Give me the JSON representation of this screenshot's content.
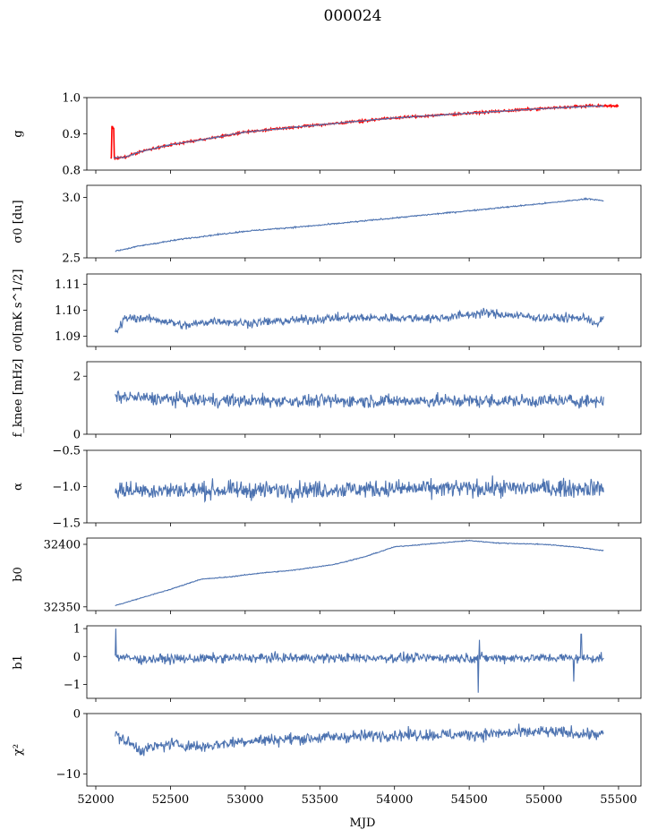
{
  "title": "000024",
  "chart_data": {
    "type": "line",
    "title": "000024",
    "xlabel": "MJD",
    "xlim": [
      51940,
      55650
    ],
    "xticks": [
      52000,
      52500,
      53000,
      53500,
      54000,
      54500,
      55000,
      55500
    ],
    "grid": false,
    "panels": [
      {
        "ylabel": "g",
        "ylim": [
          0.8,
          1.0
        ],
        "yticks": [
          "0.8",
          "0.9",
          "1.0"
        ],
        "series": [
          {
            "color": "#ff0000",
            "noise": 0.002,
            "spikes": [
              [
                52110,
                0.92
              ],
              [
                52118,
                0.915
              ]
            ],
            "points": [
              [
                52100,
                0.835
              ],
              [
                52120,
                0.832
              ],
              [
                52200,
                0.836
              ],
              [
                52300,
                0.851
              ],
              [
                52500,
                0.87
              ],
              [
                52800,
                0.89
              ],
              [
                53000,
                0.905
              ],
              [
                53500,
                0.925
              ],
              [
                54000,
                0.944
              ],
              [
                54500,
                0.957
              ],
              [
                55000,
                0.97
              ],
              [
                55300,
                0.977
              ],
              [
                55500,
                0.977
              ]
            ]
          },
          {
            "color": "#4c72b0",
            "noise": 0.001,
            "points": [
              [
                52120,
                0.834
              ],
              [
                52200,
                0.836
              ],
              [
                52300,
                0.851
              ],
              [
                52500,
                0.87
              ],
              [
                52800,
                0.89
              ],
              [
                53000,
                0.905
              ],
              [
                53500,
                0.925
              ],
              [
                54000,
                0.944
              ],
              [
                54500,
                0.957
              ],
              [
                55000,
                0.97
              ],
              [
                55300,
                0.976
              ],
              [
                55400,
                0.977
              ]
            ]
          }
        ]
      },
      {
        "ylabel": "σ0 [du]",
        "ylim": [
          2.5,
          3.1
        ],
        "yticks": [
          "2.5",
          "3.0"
        ],
        "series": [
          {
            "color": "#4c72b0",
            "noise": 0.004,
            "points": [
              [
                52130,
                2.555
              ],
              [
                52300,
                2.6
              ],
              [
                52600,
                2.66
              ],
              [
                53000,
                2.72
              ],
              [
                53500,
                2.77
              ],
              [
                54000,
                2.83
              ],
              [
                54500,
                2.89
              ],
              [
                55000,
                2.95
              ],
              [
                55300,
                2.99
              ],
              [
                55400,
                2.97
              ]
            ]
          }
        ]
      },
      {
        "ylabel": "σ0[mK s^1/2]",
        "ylim": [
          1.086,
          1.114
        ],
        "yticks": [
          "1.09",
          "1.10",
          "1.11"
        ],
        "series": [
          {
            "color": "#4c72b0",
            "noise": 0.0012,
            "points": [
              [
                52130,
                1.091
              ],
              [
                52200,
                1.097
              ],
              [
                52300,
                1.097
              ],
              [
                52450,
                1.096
              ],
              [
                52600,
                1.094
              ],
              [
                52800,
                1.096
              ],
              [
                53000,
                1.095
              ],
              [
                53300,
                1.096
              ],
              [
                53600,
                1.097
              ],
              [
                54000,
                1.097
              ],
              [
                54300,
                1.097
              ],
              [
                54600,
                1.099
              ],
              [
                55000,
                1.097
              ],
              [
                55300,
                1.097
              ],
              [
                55350,
                1.094
              ],
              [
                55400,
                1.097
              ]
            ]
          }
        ]
      },
      {
        "ylabel": "f_knee [mHz]",
        "ylim": [
          0,
          2.5
        ],
        "yticks": [
          "0",
          "2"
        ],
        "series": [
          {
            "color": "#4c72b0",
            "noise": 0.16,
            "points": [
              [
                52130,
                1.3
              ],
              [
                52500,
                1.2
              ],
              [
                53000,
                1.15
              ],
              [
                53500,
                1.15
              ],
              [
                54000,
                1.15
              ],
              [
                54500,
                1.15
              ],
              [
                55000,
                1.15
              ],
              [
                55400,
                1.15
              ]
            ]
          }
        ]
      },
      {
        "ylabel": "α",
        "ylim": [
          -1.5,
          -0.5
        ],
        "yticks": [
          "−1.5",
          "−1.0",
          "−0.5"
        ],
        "series": [
          {
            "color": "#4c72b0",
            "noise": 0.085,
            "points": [
              [
                52130,
                -1.05
              ],
              [
                53000,
                -1.05
              ],
              [
                54000,
                -1.03
              ],
              [
                55000,
                -1.02
              ],
              [
                55400,
                -1.02
              ]
            ]
          }
        ]
      },
      {
        "ylabel": "b0",
        "ylim": [
          32347,
          32405
        ],
        "yticks": [
          "32350",
          "32400"
        ],
        "series": [
          {
            "color": "#4c72b0",
            "noise": 0.25,
            "points": [
              [
                52130,
                32351
              ],
              [
                52300,
                32357
              ],
              [
                52500,
                32364
              ],
              [
                52700,
                32372
              ],
              [
                52900,
                32374
              ],
              [
                53100,
                32377
              ],
              [
                53300,
                32379
              ],
              [
                53600,
                32384
              ],
              [
                53800,
                32390
              ],
              [
                54000,
                32398
              ],
              [
                54300,
                32401
              ],
              [
                54500,
                32403
              ],
              [
                54700,
                32401
              ],
              [
                55000,
                32400
              ],
              [
                55200,
                32398
              ],
              [
                55400,
                32395
              ]
            ]
          }
        ]
      },
      {
        "ylabel": "b1",
        "ylim": [
          -1.5,
          1.1
        ],
        "yticks": [
          "−1",
          "0",
          "1"
        ],
        "series": [
          {
            "color": "#4c72b0",
            "noise": 0.12,
            "spikes": [
              [
                52135,
                1.0
              ],
              [
                54560,
                -1.3
              ],
              [
                54570,
                0.6
              ],
              [
                55200,
                -0.9
              ],
              [
                55250,
                0.8
              ]
            ],
            "points": [
              [
                52130,
                0.0
              ],
              [
                52300,
                -0.1
              ],
              [
                53000,
                -0.05
              ],
              [
                54000,
                -0.05
              ],
              [
                55000,
                -0.05
              ],
              [
                55400,
                -0.05
              ]
            ]
          }
        ]
      },
      {
        "ylabel": "χ²",
        "ylim": [
          -12,
          0
        ],
        "yticks": [
          "−10",
          "0"
        ],
        "series": [
          {
            "color": "#4c72b0",
            "noise": 0.7,
            "points": [
              [
                52130,
                -3.5
              ],
              [
                52300,
                -6
              ],
              [
                52500,
                -5
              ],
              [
                52700,
                -5.5
              ],
              [
                53000,
                -4.5
              ],
              [
                53500,
                -4
              ],
              [
                54000,
                -3.5
              ],
              [
                54500,
                -3.5
              ],
              [
                55000,
                -3
              ],
              [
                55400,
                -3.5
              ]
            ]
          }
        ]
      }
    ]
  }
}
